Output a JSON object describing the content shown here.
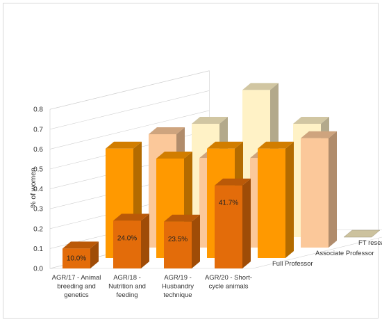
{
  "chart_data": {
    "type": "bar",
    "subtype": "3d-column",
    "ylabel": "% of women",
    "ylim": [
      0,
      0.8
    ],
    "yticks": [
      "0.0",
      "0.1",
      "0.2",
      "0.3",
      "0.4",
      "0.5",
      "0.6",
      "0.7",
      "0.8"
    ],
    "categories": [
      [
        "AGR/17 - Animal",
        "breeding and",
        "genetics"
      ],
      [
        "AGR/18 -",
        "Nutrition and",
        "feeding"
      ],
      [
        "AGR/19 -",
        "Husbandry",
        "technique"
      ],
      [
        "AGR/20 - Short-",
        "cycle animals"
      ]
    ],
    "series": [
      {
        "name": "Full Professor",
        "values": [
          0.1,
          0.24,
          0.235,
          0.417
        ],
        "labels": [
          "10.0%",
          "24.0%",
          "23.5%",
          "41.7%"
        ],
        "color": "#e36c0a"
      },
      {
        "name": "Associate Professor",
        "values": [
          0.55,
          0.5,
          0.55,
          0.55
        ],
        "color": "#ff9900"
      },
      {
        "name": "FT researcher B",
        "values": [
          0.57,
          0.45,
          0.45,
          0.55
        ],
        "color": "#fbc89a"
      },
      {
        "name": "FT researcher A",
        "values": [
          0.57,
          0.74,
          0.57,
          0.0
        ],
        "color": "#fff2c6"
      }
    ],
    "grid": true,
    "legend": "right-diagonal"
  }
}
